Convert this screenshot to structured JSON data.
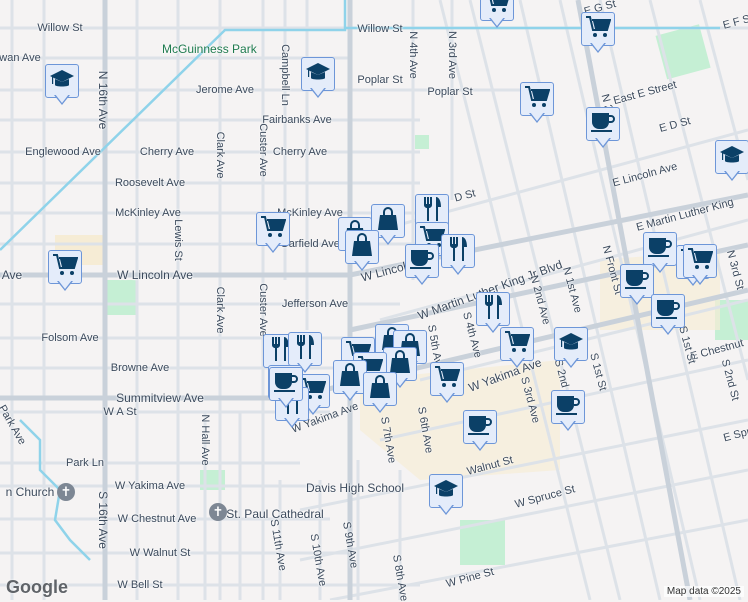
{
  "map": {
    "attribution": "Map data ©2025",
    "logo": "Google",
    "colors": {
      "road": "#d6dce3",
      "major_road": "#c8d0d9",
      "canal": "#8fd3ea",
      "park": "#c5efd4",
      "campus": "#f6ecd5",
      "marker_fill": "#e4ecfa",
      "marker_border": "#6d96d8",
      "icon": "#0b4067"
    },
    "parks": [
      "McGuinness Park"
    ],
    "labels": [
      "Willow St",
      "Willow St",
      "Jerome Ave",
      "Poplar St",
      "Poplar St",
      "Fairbanks Ave",
      "Englewood Ave",
      "Cherry Ave",
      "Cherry Ave",
      "Roosevelt Ave",
      "McKinley Ave",
      "McKinley Ave",
      "Garfield Ave",
      "W Lincoln Ave",
      "Ave",
      "W Lincoln Ave",
      "Jefferson Ave",
      "Folsom Ave",
      "Browne Ave",
      "Summitview Ave",
      "W A St",
      "Park Ave",
      "Park Ln",
      "W Yakima Ave",
      "W Chestnut Ave",
      "W Walnut St",
      "W Bell St",
      "Davis High School",
      "St. Paul Cathedral",
      "n Church",
      "W Yakima Ave",
      "W Martin Luther King Jr Blvd",
      "W Yakima Ave",
      "Walnut St",
      "W Spruce St",
      "W Pine St",
      "E Lincoln Ave",
      "E Martin Luther King",
      "East E Street",
      "E D St",
      "D St",
      "E G St",
      "E Chestnut",
      "E Spr",
      "N 16th Ave",
      "S 16th Ave",
      "Lewis St",
      "Clark Ave",
      "Clark Ave",
      "Custer Ave",
      "Custer Ave",
      "Campbell Ln",
      "N 4th Ave",
      "N 3rd Ave",
      "N 2nd St",
      "N Hall Ave",
      "S 11th Ave",
      "S 10th Ave",
      "S 9th Ave",
      "S 8th Ave",
      "S 7th Ave",
      "S 6th Ave",
      "S 5th Ave",
      "S 4th Ave",
      "S 3rd Ave",
      "S 2nd St",
      "S 1st St",
      "N 2nd Ave",
      "N 1st Ave",
      "N 3rd St",
      "S 1st St",
      "S 2nd St",
      "N Front St",
      "E F St",
      "wan Ave"
    ],
    "markers": [
      "school",
      "school",
      "grocery",
      "grocery",
      "shopping",
      "shopping",
      "shopping",
      "restaurant",
      "grocery",
      "restaurant",
      "cafe",
      "grocery",
      "grocery",
      "grocery",
      "cafe",
      "school",
      "cafe",
      "grocery",
      "grocery",
      "cafe",
      "cafe",
      "restaurant",
      "grocery",
      "school",
      "restaurant",
      "restaurant",
      "grocery",
      "shopping",
      "shopping",
      "shopping",
      "grocery",
      "shopping",
      "shopping",
      "restaurant",
      "grocery",
      "restaurant",
      "cafe",
      "grocery",
      "cafe",
      "cafe",
      "school"
    ],
    "churches": [
      "church",
      "church"
    ]
  }
}
